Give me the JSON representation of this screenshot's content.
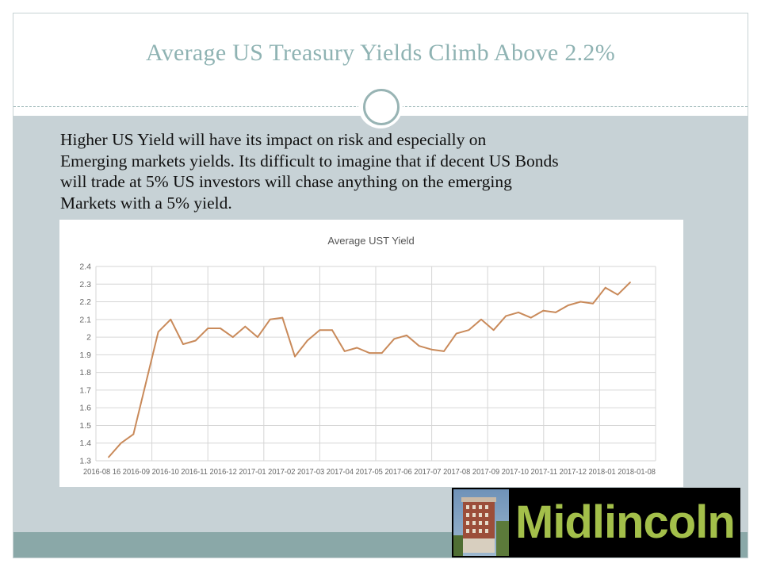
{
  "slide": {
    "title": "Average US Treasury Yields Climb Above 2.2%",
    "body_text": "Higher US Yield will have its impact on risk and especially on\nEmerging markets yields. Its difficult to imagine that if  decent US Bonds\nwill trade at 5% US investors will chase anything on the emerging\nMarkets with a 5% yield."
  },
  "logo": {
    "text": "Midlincoln"
  },
  "colors": {
    "title": "#8fb3b3",
    "panel": "#c7d2d6",
    "footer": "#8aa8a8",
    "line": "#c98a5a",
    "logo_text": "#a3bf4a"
  },
  "chart_data": {
    "type": "line",
    "title": "Average UST Yield",
    "xlabel": "",
    "ylabel": "",
    "ylim": [
      1.3,
      2.4
    ],
    "yticks": [
      "1.3",
      "1.4",
      "1.5",
      "1.6",
      "1.7",
      "1.8",
      "1.9",
      "2",
      "2.1",
      "2.2",
      "2.3",
      "2.4"
    ],
    "grid": true,
    "legend": "none",
    "x_label_text": "2016-08 16 2016-09 2016-10 2016-11 2016-12 2017-01 2017-02 2017-03 2017-04 2017-05 2017-06 2017-07 2017-08 2017-09 2017-10 2017-11 2017-12 2018-01 2018-01-08",
    "series": [
      {
        "values": [
          1.32,
          1.4,
          1.45,
          1.74,
          2.03,
          2.1,
          1.96,
          1.98,
          2.05,
          2.05,
          2.0,
          2.06,
          2.0,
          2.1,
          2.11,
          1.89,
          1.98,
          2.04,
          2.04,
          1.92,
          1.94,
          1.91,
          1.91,
          1.99,
          2.01,
          1.95,
          1.93,
          1.92,
          2.02,
          2.04,
          2.1,
          2.04,
          2.12,
          2.14,
          2.11,
          2.15,
          2.14,
          2.18,
          2.2,
          2.19,
          2.28,
          2.24,
          2.31
        ]
      }
    ]
  }
}
